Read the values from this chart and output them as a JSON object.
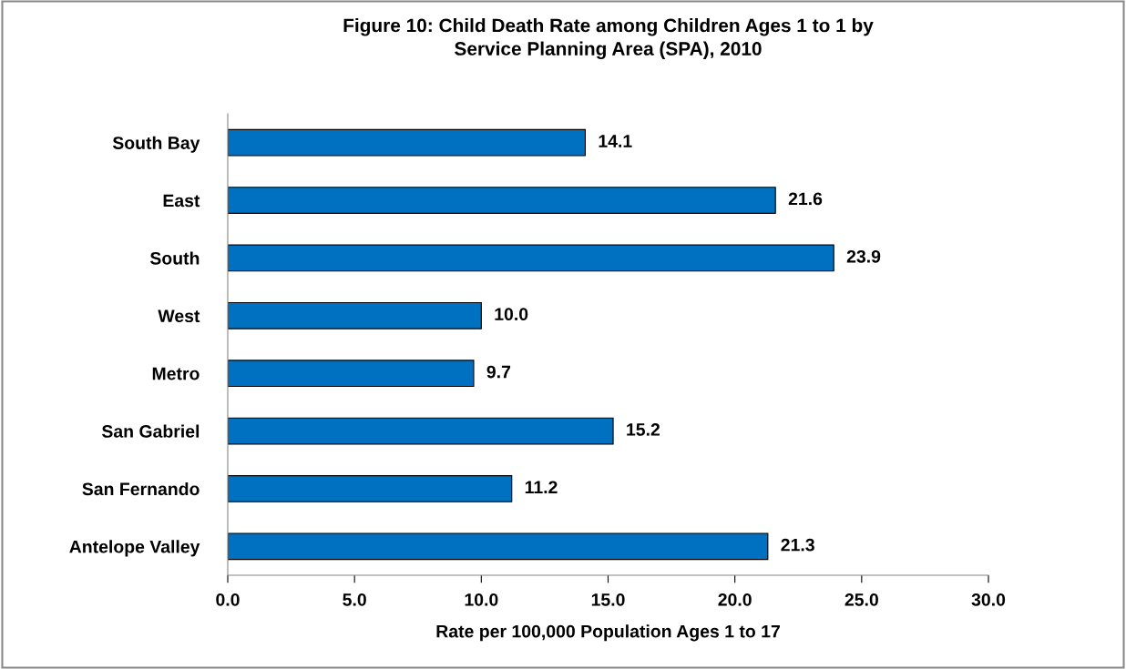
{
  "chart_data": {
    "type": "bar",
    "orientation": "horizontal",
    "title": "Figure 10: Child Death Rate among Children Ages 1 to 1 by\nService Planning Area (SPA), 2010",
    "xlabel": "Rate per 100,000 Population Ages 1 to 17",
    "categories": [
      "South Bay",
      "East",
      "South",
      "West",
      "Metro",
      "San Gabriel",
      "San Fernando",
      "Antelope Valley"
    ],
    "values": [
      14.1,
      21.6,
      23.9,
      10.0,
      9.7,
      15.2,
      11.2,
      21.3
    ],
    "value_labels": [
      "14.1",
      "21.6",
      "23.9",
      "10.0",
      "9.7",
      "15.2",
      "11.2",
      "21.3"
    ],
    "color": "#0070c0",
    "xlim": [
      0,
      30
    ],
    "xticks": [
      {
        "value": 0,
        "label": "0.0"
      },
      {
        "value": 5,
        "label": "5.0"
      },
      {
        "value": 10,
        "label": "10.0"
      },
      {
        "value": 15,
        "label": "15.0"
      },
      {
        "value": 20,
        "label": "20.0"
      },
      {
        "value": 25,
        "label": "25.0"
      },
      {
        "value": 30,
        "label": "30.0"
      }
    ],
    "grid": false,
    "legend": false
  }
}
